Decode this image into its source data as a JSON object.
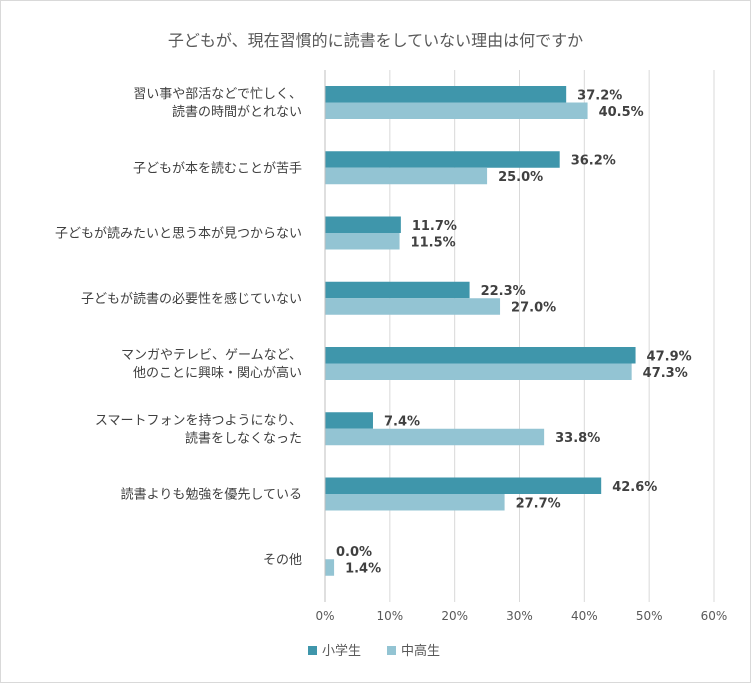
{
  "chart_data": {
    "type": "bar",
    "orientation": "horizontal",
    "title": "子どもが、現在習慣的に読書をしていない理由は何ですか",
    "categories": [
      [
        "習い事や部活などで忙しく、",
        "読書の時間がとれない"
      ],
      [
        "子どもが本を読むことが苦手"
      ],
      [
        "子どもが読みたいと思う本が見つからない"
      ],
      [
        "子どもが読書の必要性を感じていない"
      ],
      [
        "マンガやテレビ、ゲームなど、",
        "他のことに興味・関心が高い"
      ],
      [
        "スマートフォンを持つようになり、",
        "読書をしなくなった"
      ],
      [
        "読書よりも勉強を優先している"
      ],
      [
        "その他"
      ]
    ],
    "series": [
      {
        "name": "小学生",
        "color": "#3f96ab",
        "values": [
          37.2,
          36.2,
          11.7,
          22.3,
          47.9,
          7.4,
          42.6,
          0.0
        ],
        "labels": [
          "37.2%",
          "36.2%",
          "11.7%",
          "22.3%",
          "47.9%",
          "7.4%",
          "42.6%",
          "0.0%"
        ]
      },
      {
        "name": "中高生",
        "color": "#93c4d3",
        "values": [
          40.5,
          25.0,
          11.5,
          27.0,
          47.3,
          33.8,
          27.7,
          1.4
        ],
        "labels": [
          "40.5%",
          "25.0%",
          "11.5%",
          "27.0%",
          "47.3%",
          "33.8%",
          "27.7%",
          "1.4%"
        ]
      }
    ],
    "xlim": [
      0,
      60
    ],
    "xticks": [
      "0%",
      "10%",
      "20%",
      "30%",
      "40%",
      "50%",
      "60%"
    ],
    "grid": true,
    "legend_position": "bottom"
  }
}
